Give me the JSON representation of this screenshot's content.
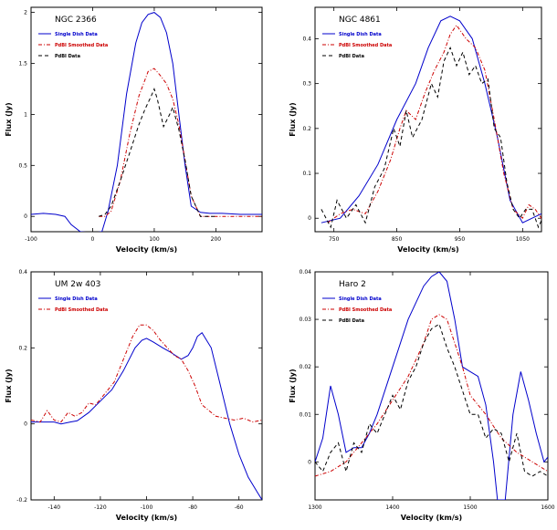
{
  "chart_data": [
    {
      "type": "line",
      "title": "NGC 2366",
      "xlabel": "Velocity (km/s)",
      "ylabel": "Flux (Jy)",
      "xlim": [
        -100,
        275
      ],
      "ylim": [
        -0.15,
        2.05
      ],
      "xticks": [
        -100,
        0,
        100,
        200
      ],
      "yticks": [
        0,
        0.5,
        1,
        1.5,
        2
      ],
      "ytick_labels": [
        "0",
        "0.5",
        "1",
        "1.5",
        "2"
      ],
      "legend_position": "top-left",
      "series": [
        {
          "name": "Single Dish Data",
          "color": "#0000cc",
          "dash": "",
          "x": [
            -100,
            -80,
            -60,
            -45,
            -35,
            -20,
            0,
            15,
            25,
            40,
            55,
            70,
            80,
            90,
            100,
            110,
            120,
            130,
            140,
            150,
            160,
            175,
            190,
            210,
            240,
            275
          ],
          "y": [
            0.02,
            0.03,
            0.02,
            0,
            -0.08,
            -0.15,
            -0.16,
            -0.15,
            0.05,
            0.5,
            1.2,
            1.7,
            1.9,
            1.98,
            2.0,
            1.95,
            1.8,
            1.5,
            1.0,
            0.5,
            0.1,
            0.04,
            0.03,
            0.03,
            0.02,
            0.02
          ]
        },
        {
          "name": "PdBI Smoothed Data",
          "color": "#cc0000",
          "dash": "4,2,1,2",
          "x": [
            10,
            20,
            30,
            45,
            60,
            75,
            90,
            100,
            110,
            120,
            130,
            140,
            150,
            160,
            175,
            200,
            240,
            275
          ],
          "y": [
            0,
            0,
            0.05,
            0.35,
            0.8,
            1.18,
            1.42,
            1.45,
            1.38,
            1.3,
            1.15,
            0.9,
            0.55,
            0.2,
            0,
            0,
            0,
            0
          ]
        },
        {
          "name": "PdBI Data",
          "color": "#000000",
          "dash": "4,3",
          "x": [
            10,
            20,
            30,
            45,
            60,
            75,
            85,
            95,
            100,
            105,
            115,
            125,
            130,
            140,
            150,
            160,
            175,
            200
          ],
          "y": [
            0,
            0.02,
            0.1,
            0.35,
            0.62,
            0.9,
            1.05,
            1.18,
            1.25,
            1.15,
            0.88,
            1.0,
            1.07,
            0.85,
            0.55,
            0.2,
            0,
            0
          ]
        }
      ]
    },
    {
      "type": "line",
      "title": "NGC 4861",
      "xlabel": "Velocity (km/s)",
      "ylabel": "Flux (Jy)",
      "xlim": [
        720,
        1080
      ],
      "ylim": [
        -0.03,
        0.47
      ],
      "xticks": [
        750,
        850,
        950,
        1050
      ],
      "yticks": [
        0,
        0.1,
        0.2,
        0.3,
        0.4
      ],
      "ytick_labels": [
        "0",
        "0.1",
        "0.2",
        "0.3",
        "0.4"
      ],
      "legend_position": "top-left",
      "series": [
        {
          "name": "Single Dish Data",
          "color": "#0000cc",
          "dash": "",
          "x": [
            730,
            760,
            790,
            820,
            850,
            880,
            900,
            920,
            935,
            950,
            970,
            990,
            1010,
            1030,
            1050,
            1065,
            1080
          ],
          "y": [
            -0.01,
            0,
            0.05,
            0.12,
            0.22,
            0.3,
            0.38,
            0.44,
            0.45,
            0.44,
            0.4,
            0.3,
            0.18,
            0.04,
            -0.01,
            0,
            0.01
          ]
        },
        {
          "name": "PdBI Smoothed Data",
          "color": "#cc0000",
          "dash": "4,2,1,2",
          "x": [
            740,
            760,
            780,
            800,
            820,
            840,
            855,
            865,
            880,
            895,
            910,
            925,
            935,
            945,
            960,
            975,
            990,
            1005,
            1020,
            1035,
            1050,
            1060,
            1070,
            1085
          ],
          "y": [
            -0.01,
            0.01,
            0.02,
            0.01,
            0.06,
            0.13,
            0.2,
            0.24,
            0.22,
            0.28,
            0.33,
            0.37,
            0.41,
            0.43,
            0.4,
            0.38,
            0.33,
            0.22,
            0.1,
            0.02,
            0.0,
            0.03,
            0.02,
            -0.01
          ]
        },
        {
          "name": "PdBI Data",
          "color": "#000000",
          "dash": "4,3",
          "x": [
            730,
            745,
            755,
            770,
            785,
            800,
            815,
            830,
            845,
            855,
            865,
            875,
            890,
            905,
            915,
            925,
            935,
            945,
            955,
            965,
            975,
            985,
            995,
            1005,
            1015,
            1025,
            1035,
            1045,
            1055,
            1065,
            1075,
            1085
          ],
          "y": [
            0.02,
            -0.02,
            0.04,
            0.0,
            0.03,
            -0.01,
            0.07,
            0.11,
            0.2,
            0.16,
            0.24,
            0.18,
            0.22,
            0.3,
            0.27,
            0.35,
            0.38,
            0.34,
            0.37,
            0.32,
            0.34,
            0.3,
            0.31,
            0.2,
            0.18,
            0.08,
            0.02,
            0.0,
            0.02,
            0.02,
            -0.02,
            0.01
          ]
        }
      ]
    },
    {
      "type": "line",
      "title": "UM 2w 403",
      "xlabel": "Velocity (km/s)",
      "ylabel": "Flux (Jy)",
      "xlim": [
        -150,
        -50
      ],
      "ylim": [
        -0.2,
        0.4
      ],
      "xticks": [
        -140,
        -120,
        -100,
        -80,
        -60
      ],
      "yticks": [
        -0.2,
        0,
        0.2,
        0.4
      ],
      "ytick_labels": [
        "-0.2",
        "0",
        "0.2",
        "0.4"
      ],
      "legend_position": "top-left",
      "series": [
        {
          "name": "Single Dish Data",
          "color": "#0000cc",
          "dash": "",
          "x": [
            -150,
            -145,
            -140,
            -137,
            -133,
            -130,
            -125,
            -120,
            -115,
            -110,
            -105,
            -102,
            -100,
            -97,
            -93,
            -90,
            -85,
            -82,
            -80,
            -78,
            -76,
            -72,
            -68,
            -64,
            -60,
            -56,
            -52,
            -50
          ],
          "y": [
            0.005,
            0.005,
            0.005,
            0.0,
            0.005,
            0.008,
            0.03,
            0.06,
            0.09,
            0.14,
            0.2,
            0.22,
            0.225,
            0.215,
            0.2,
            0.19,
            0.17,
            0.18,
            0.2,
            0.23,
            0.24,
            0.2,
            0.1,
            0.0,
            -0.08,
            -0.14,
            -0.18,
            -0.2
          ]
        },
        {
          "name": "PdBI Smoothed Data",
          "color": "#cc0000",
          "dash": "4,2,1,2",
          "x": [
            -150,
            -146,
            -143,
            -140,
            -137,
            -134,
            -131,
            -128,
            -125,
            -122,
            -118,
            -114,
            -110,
            -106,
            -103,
            -100,
            -97,
            -94,
            -91,
            -88,
            -85,
            -82,
            -79,
            -76,
            -73,
            -70,
            -66,
            -62,
            -58,
            -54,
            -50
          ],
          "y": [
            0.01,
            0.005,
            0.035,
            0.01,
            0.005,
            0.03,
            0.02,
            0.03,
            0.055,
            0.05,
            0.08,
            0.11,
            0.17,
            0.23,
            0.26,
            0.26,
            0.245,
            0.22,
            0.2,
            0.18,
            0.17,
            0.14,
            0.1,
            0.05,
            0.035,
            0.02,
            0.015,
            0.01,
            0.015,
            0.005,
            0.01
          ]
        }
      ]
    },
    {
      "type": "line",
      "title": "Haro 2",
      "xlabel": "Velocity (km/s)",
      "ylabel": "Flux (Jy)",
      "xlim": [
        1300,
        1600
      ],
      "ylim": [
        -0.008,
        0.04
      ],
      "xticks": [
        1300,
        1400,
        1500,
        1600
      ],
      "yticks": [
        0,
        0.01,
        0.02,
        0.03,
        0.04
      ],
      "ytick_labels": [
        "0",
        "0.01",
        "0.02",
        "0.03",
        "0.04"
      ],
      "legend_position": "top-left",
      "series": [
        {
          "name": "Single Dish Data",
          "color": "#0000cc",
          "dash": "",
          "x": [
            1300,
            1310,
            1320,
            1330,
            1340,
            1350,
            1360,
            1370,
            1380,
            1400,
            1420,
            1440,
            1450,
            1460,
            1470,
            1480,
            1490,
            1500,
            1510,
            1520,
            1530,
            1535,
            1545,
            1555,
            1565,
            1575,
            1585,
            1595,
            1600
          ],
          "y": [
            0.0,
            0.005,
            0.016,
            0.01,
            0.002,
            0.003,
            0.003,
            0.006,
            0.01,
            0.02,
            0.03,
            0.037,
            0.039,
            0.04,
            0.038,
            0.03,
            0.02,
            0.019,
            0.018,
            0.012,
            0.0,
            -0.008,
            -0.008,
            0.01,
            0.019,
            0.013,
            0.006,
            0.0,
            0.001
          ]
        },
        {
          "name": "PdBI Smoothed Data",
          "color": "#cc0000",
          "dash": "4,2,1,2",
          "x": [
            1300,
            1320,
            1340,
            1360,
            1380,
            1400,
            1420,
            1440,
            1450,
            1460,
            1470,
            1480,
            1490,
            1500,
            1520,
            1540,
            1560,
            1580,
            1600
          ],
          "y": [
            -0.003,
            -0.002,
            0.0,
            0.004,
            0.008,
            0.013,
            0.018,
            0.025,
            0.03,
            0.031,
            0.03,
            0.025,
            0.02,
            0.014,
            0.01,
            0.005,
            0.002,
            0.0,
            -0.002
          ]
        },
        {
          "name": "PdBI Data",
          "color": "#000000",
          "dash": "4,3",
          "x": [
            1300,
            1310,
            1320,
            1330,
            1340,
            1350,
            1360,
            1370,
            1380,
            1390,
            1400,
            1410,
            1420,
            1430,
            1440,
            1450,
            1460,
            1470,
            1480,
            1490,
            1500,
            1510,
            1520,
            1530,
            1540,
            1550,
            1560,
            1570,
            1580,
            1590,
            1600
          ],
          "y": [
            0.0,
            -0.002,
            0.002,
            0.004,
            -0.002,
            0.004,
            0.002,
            0.008,
            0.006,
            0.01,
            0.014,
            0.011,
            0.017,
            0.02,
            0.025,
            0.028,
            0.029,
            0.024,
            0.02,
            0.015,
            0.01,
            0.01,
            0.005,
            0.007,
            0.006,
            0.0,
            0.006,
            -0.002,
            -0.003,
            -0.002,
            -0.003
          ]
        }
      ]
    }
  ]
}
